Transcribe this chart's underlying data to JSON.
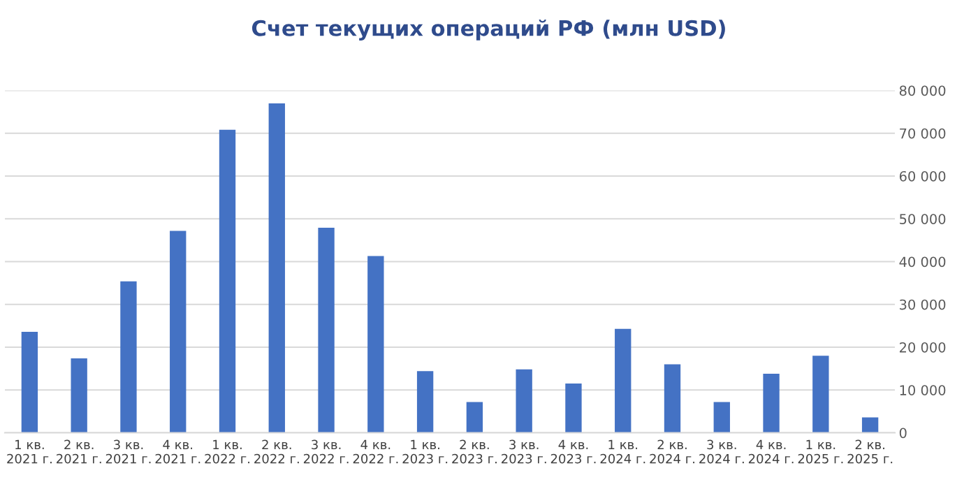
{
  "chart_data": {
    "type": "bar",
    "title": "Счет текущих операций РФ (млн USD)",
    "categories": [
      "1 кв.\n2021 г.",
      "2 кв.\n2021 г.",
      "3 кв.\n2021 г.",
      "4 кв.\n2021 г.",
      "1 кв.\n2022 г.",
      "2 кв.\n2022 г.",
      "3 кв.\n2022 г.",
      "4 кв.\n2022 г.",
      "1 кв.\n2023 г.",
      "2 кв.\n2023 г.",
      "3 кв.\n2023 г.",
      "4 кв.\n2023 г.",
      "1 кв.\n2024 г.",
      "2 кв.\n2024 г.",
      "3 кв.\n2024 г.",
      "4 кв.\n2024 г.",
      "1 кв.\n2025 г.",
      "2 кв.\n2025 г."
    ],
    "values": [
      23600,
      17400,
      35400,
      47200,
      70800,
      77000,
      47900,
      41300,
      14400,
      7200,
      14800,
      11500,
      24300,
      16000,
      7200,
      13800,
      18000,
      3600
    ],
    "color": "#4472c4",
    "ylim": [
      0,
      80000
    ],
    "yticks": [
      {
        "value": 0,
        "label": "0"
      },
      {
        "value": 10000,
        "label": "10 000"
      },
      {
        "value": 20000,
        "label": "20 000"
      },
      {
        "value": 30000,
        "label": "30 000"
      },
      {
        "value": 40000,
        "label": "40 000"
      },
      {
        "value": 50000,
        "label": "50 000"
      },
      {
        "value": 60000,
        "label": "60 000"
      },
      {
        "value": 70000,
        "label": "70 000"
      },
      {
        "value": 80000,
        "label": "80 000"
      }
    ],
    "grid": "y"
  }
}
